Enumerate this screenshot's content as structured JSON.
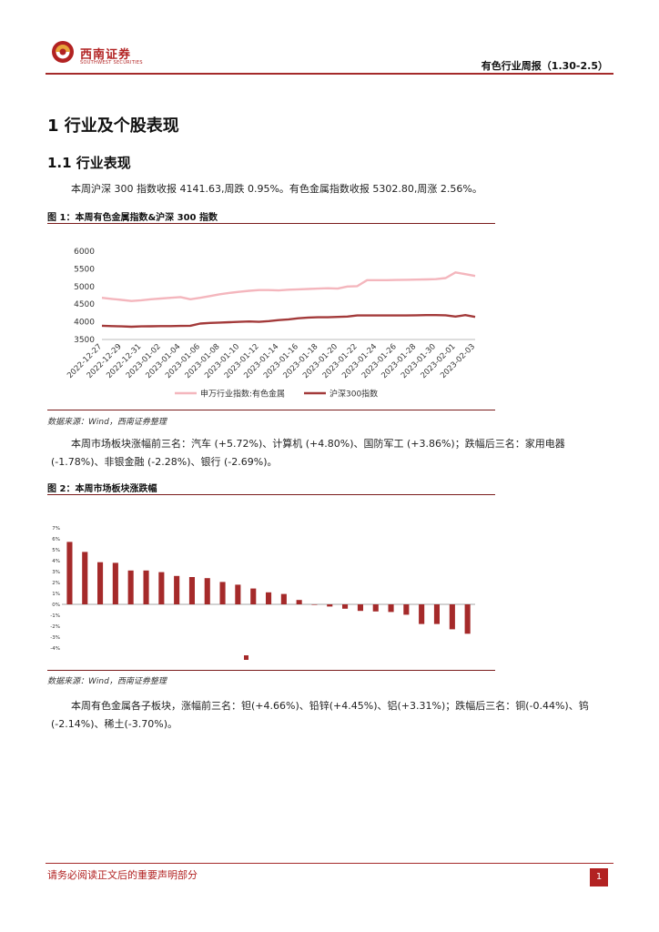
{
  "header": {
    "brand": "西南证券",
    "brand_sub": "SOUTHWEST SECURITIES",
    "report_title": "有色行业周报（1.30-2.5）"
  },
  "section": {
    "h1": "1 行业及个股表现",
    "h2": "1.1 行业表现"
  },
  "paragraphs": {
    "p1": "本周沪深 300 指数收报 4141.63,周跌 0.95%。有色金属指数收报 5302.80,周涨 2.56%。",
    "p2": "本周市场板块涨幅前三名：汽车 (+5.72%)、计算机 (+4.80%)、国防军工 (+3.86%)；跌幅后三名：家用电器 (-1.78%)、非银金融 (-2.28%)、银行 (-2.69%)。",
    "p3": "本周有色金属各子板块，涨幅前三名：钽(+4.66%)、铅锌(+4.45%)、铝(+3.31%)；跌幅后三名：铜(-0.44%)、钨(-2.14%)、稀土(-3.70%)。"
  },
  "figures": {
    "fig1_title": "图 1：本周有色金属指数&沪深 300 指数",
    "fig1_source": "数据来源：Wind，西南证券整理",
    "fig2_title": "图 2：本周市场板块涨跌幅",
    "fig2_source": "数据来源：Wind，西南证券整理"
  },
  "footer": {
    "disclaimer": "请务必阅读正文后的重要声明部分",
    "page_number": "1"
  },
  "colors": {
    "brand_red": "#b22222",
    "series_nonferrous": "#f4b6bd",
    "series_hs300": "#a33a3a",
    "bar": "#a52a2a"
  },
  "chart_data": [
    {
      "type": "line",
      "x": [
        "2022-12-27",
        "2022-12-28",
        "2022-12-29",
        "2022-12-30",
        "2022-12-31",
        "2023-01-01",
        "2023-01-02",
        "2023-01-03",
        "2023-01-04",
        "2023-01-05",
        "2023-01-06",
        "2023-01-07",
        "2023-01-08",
        "2023-01-09",
        "2023-01-10",
        "2023-01-11",
        "2023-01-12",
        "2023-01-13",
        "2023-01-14",
        "2023-01-15",
        "2023-01-16",
        "2023-01-17",
        "2023-01-18",
        "2023-01-19",
        "2023-01-20",
        "2023-01-21",
        "2023-01-22",
        "2023-01-23",
        "2023-01-24",
        "2023-01-25",
        "2023-01-26",
        "2023-01-27",
        "2023-01-28",
        "2023-01-29",
        "2023-01-30",
        "2023-01-31",
        "2023-02-01",
        "2023-02-02",
        "2023-02-03"
      ],
      "x_tick_labels": [
        "2022-12-27",
        "2022-12-29",
        "2022-12-31",
        "2023-01-02",
        "2023-01-04",
        "2023-01-06",
        "2023-01-08",
        "2023-01-10",
        "2023-01-12",
        "2023-01-14",
        "2023-01-16",
        "2023-01-18",
        "2023-01-20",
        "2023-01-22",
        "2023-01-24",
        "2023-01-26",
        "2023-01-28",
        "2023-01-30",
        "2023-02-01",
        "2023-02-03"
      ],
      "y_ticks": [
        "3500",
        "4000",
        "4500",
        "5000",
        "5500",
        "6000"
      ],
      "ylim": [
        3500,
        6000
      ],
      "legend_position": "bottom",
      "series": [
        {
          "name": "申万行业指数:有色金属",
          "values": [
            4680,
            4650,
            4620,
            4590,
            4610,
            4640,
            4660,
            4680,
            4700,
            4640,
            4680,
            4730,
            4780,
            4820,
            4850,
            4880,
            4900,
            4900,
            4890,
            4910,
            4920,
            4930,
            4940,
            4950,
            4940,
            5000,
            5010,
            5180,
            5180,
            5180,
            5185,
            5190,
            5195,
            5200,
            5210,
            5240,
            5400,
            5350,
            5300
          ]
        },
        {
          "name": "沪深300指数",
          "values": [
            3890,
            3880,
            3870,
            3860,
            3870,
            3875,
            3880,
            3880,
            3885,
            3890,
            3950,
            3970,
            3980,
            3990,
            4000,
            4010,
            4000,
            4020,
            4050,
            4070,
            4100,
            4120,
            4130,
            4130,
            4140,
            4150,
            4180,
            4180,
            4180,
            4180,
            4180,
            4180,
            4185,
            4190,
            4190,
            4185,
            4150,
            4190,
            4140
          ]
        }
      ]
    },
    {
      "type": "bar",
      "values": [
        5.72,
        4.8,
        3.86,
        3.8,
        3.1,
        3.1,
        2.95,
        2.6,
        2.5,
        2.4,
        2.05,
        1.8,
        1.45,
        1.1,
        0.95,
        0.4,
        -0.05,
        -0.2,
        -0.4,
        -0.6,
        -0.65,
        -0.7,
        -0.95,
        -1.8,
        -1.8,
        -2.28,
        -2.69
      ],
      "y_ticks": [
        "7%",
        "6%",
        "5%",
        "4%",
        "3%",
        "2%",
        "1%",
        "0%",
        "-1%",
        "-2%",
        "-3%",
        "-4%"
      ],
      "ylim": [
        -4,
        7
      ]
    }
  ]
}
